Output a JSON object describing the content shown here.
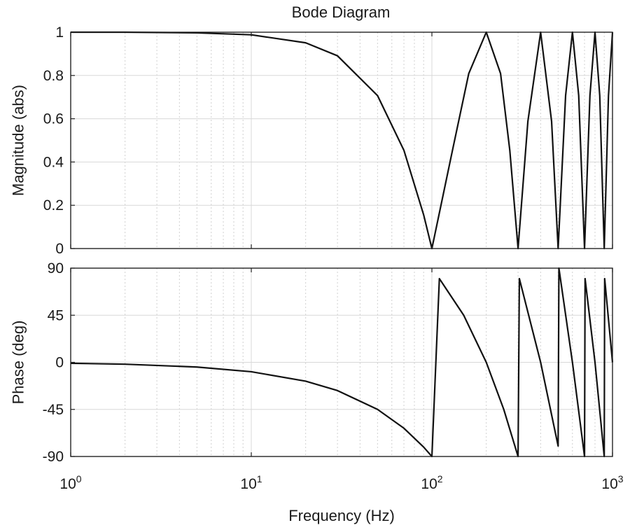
{
  "chart_data": {
    "type": "line",
    "title": "Bode Diagram",
    "xlabel": "Frequency  (Hz)",
    "xscale": "log",
    "xlim": [
      1,
      1000
    ],
    "xticks": [
      {
        "base": "10",
        "exp": "0"
      },
      {
        "base": "10",
        "exp": "1"
      },
      {
        "base": "10",
        "exp": "2"
      },
      {
        "base": "10",
        "exp": "3"
      }
    ],
    "grid": true,
    "panels": [
      {
        "name": "magnitude",
        "ylabel": "Magnitude (abs)",
        "ylim": [
          0,
          1
        ],
        "yticks": [
          "0",
          "0.2",
          "0.4",
          "0.6",
          "0.8",
          "1"
        ],
        "series": [
          {
            "name": "Magnitude",
            "x": [
              1,
              2,
              5,
              10,
              20,
              30,
              50,
              70,
              90,
              100,
              130,
              160,
              200,
              240,
              270,
              300,
              340,
              400,
              460,
              500,
              550,
              600,
              650,
              700,
              750,
              800,
              850,
              900,
              950,
              1000
            ],
            "y": [
              1,
              1,
              0.997,
              0.988,
              0.951,
              0.891,
              0.707,
              0.454,
              0.156,
              0.0,
              0.454,
              0.809,
              1.0,
              0.809,
              0.454,
              0.0,
              0.588,
              1.0,
              0.588,
              0.0,
              0.707,
              1.0,
              0.707,
              0.0,
              0.707,
              1.0,
              0.707,
              0.0,
              0.707,
              1.0
            ]
          }
        ]
      },
      {
        "name": "phase",
        "ylabel": "Phase (deg)",
        "ylim": [
          -90,
          90
        ],
        "yticks": [
          "-90",
          "-45",
          "0",
          "45",
          "90"
        ],
        "series": [
          {
            "name": "Phase",
            "x": [
              1,
              2,
              5,
              10,
              20,
              30,
              50,
              70,
              90,
              100,
              100.01,
              110,
              150,
              200,
              250,
              300,
              300.01,
              305,
              400,
              500,
              500.01,
              505,
              600,
              700,
              700.01,
              705,
              800,
              900,
              900.01,
              905,
              1000
            ],
            "y": [
              -0.9,
              -1.8,
              -4.5,
              -9,
              -18,
              -27,
              -45,
              -63,
              -81,
              -90,
              -90,
              80,
              45,
              0,
              -45,
              -90,
              -90,
              80,
              0,
              -80,
              -80,
              90,
              0,
              -90,
              -90,
              80,
              0,
              -90,
              -90,
              80,
              0
            ]
          }
        ]
      }
    ]
  }
}
